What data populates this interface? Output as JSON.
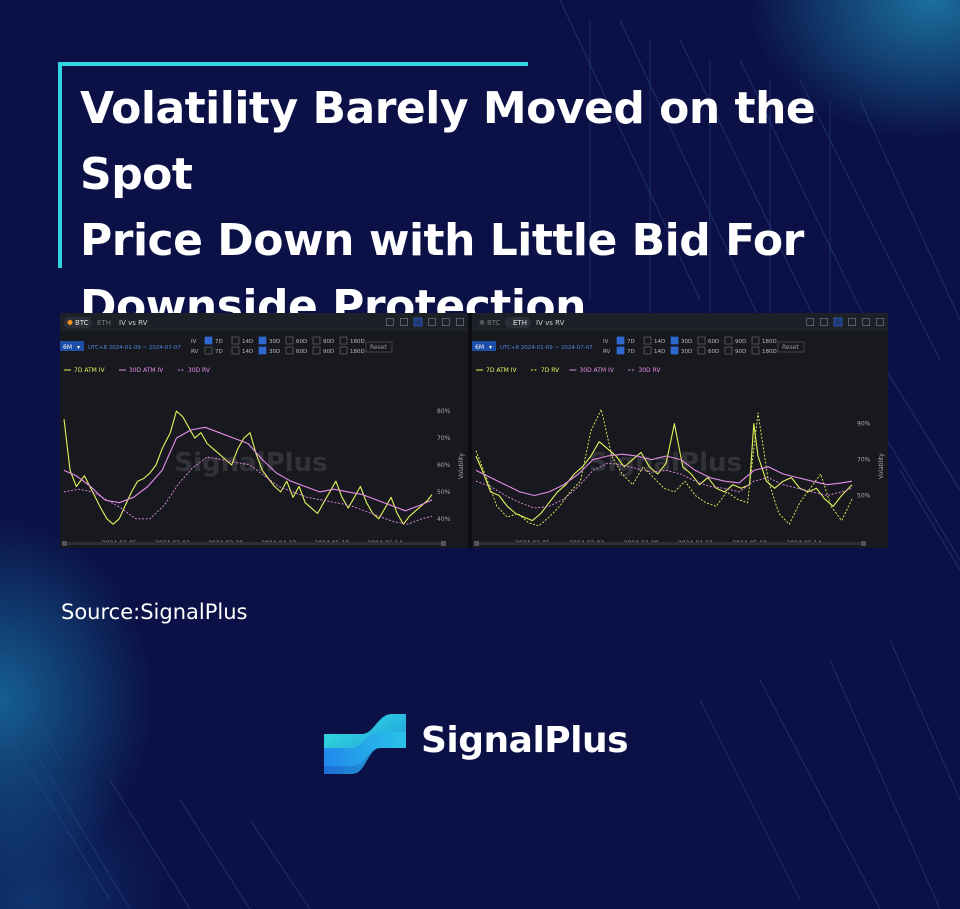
{
  "title_lines": [
    "Volatility Barely Moved on the Spot",
    "Price Down with Little Bid For",
    "Downside Protection"
  ],
  "source": "Source:SignalPlus",
  "brand": "SignalPlus",
  "colors": {
    "background": "#0b1146",
    "accent": "#2fd5e0",
    "iv_line": "#e6f35a",
    "rv_line": "#e58ee8"
  },
  "chart_data": [
    {
      "type": "line",
      "panel": "btc",
      "tabs": [
        "BTC",
        "ETH"
      ],
      "active_tab": "BTC",
      "title": "IV vs RV",
      "period": "6M",
      "date_range": "UTC+8 2024-01-09 ~ 2024-07-07",
      "iv_label": "IV",
      "rv_label": "RV",
      "tenors": [
        "7D",
        "14D",
        "30D",
        "60D",
        "90D",
        "180D"
      ],
      "iv_checked": [
        "7D",
        "30D"
      ],
      "rv_checked": [
        "30D"
      ],
      "reset_label": "Reset",
      "watermark": "SignalPlus",
      "ylabel": "Volatility",
      "y_tick_labels": [
        "80%",
        "70%",
        "60%",
        "50%",
        "40%"
      ],
      "ylim": [
        34,
        86
      ],
      "x_tick_labels": [
        "2024-02-05",
        "2024-03-02",
        "2024-03-28",
        "2024-04-23",
        "2024-05-19",
        "2024-06-14"
      ],
      "x_start": "2024-01-09",
      "x_end": "2024-07-07",
      "series": [
        {
          "name": "7D ATM IV",
          "style": "solid",
          "color": "#e6f35a",
          "dates": [
            "2024-01-09",
            "2024-01-12",
            "2024-01-15",
            "2024-01-19",
            "2024-01-23",
            "2024-01-27",
            "2024-01-30",
            "2024-02-02",
            "2024-02-05",
            "2024-02-08",
            "2024-02-11",
            "2024-02-14",
            "2024-02-17",
            "2024-02-20",
            "2024-02-23",
            "2024-02-26",
            "2024-03-01",
            "2024-03-04",
            "2024-03-07",
            "2024-03-10",
            "2024-03-13",
            "2024-03-16",
            "2024-03-19",
            "2024-03-22",
            "2024-03-25",
            "2024-03-28",
            "2024-03-31",
            "2024-04-03",
            "2024-04-06",
            "2024-04-09",
            "2024-04-12",
            "2024-04-15",
            "2024-04-18",
            "2024-04-21",
            "2024-04-24",
            "2024-04-27",
            "2024-04-30",
            "2024-05-03",
            "2024-05-06",
            "2024-05-09",
            "2024-05-12",
            "2024-05-15",
            "2024-05-18",
            "2024-05-21",
            "2024-05-24",
            "2024-05-27",
            "2024-05-30",
            "2024-06-02",
            "2024-06-05",
            "2024-06-08",
            "2024-06-11",
            "2024-06-14",
            "2024-06-17",
            "2024-06-20",
            "2024-06-23",
            "2024-06-26",
            "2024-06-29",
            "2024-07-02",
            "2024-07-05",
            "2024-07-07"
          ],
          "values": [
            77,
            58,
            52,
            56,
            50,
            44,
            40,
            38,
            40,
            45,
            50,
            54,
            55,
            57,
            60,
            66,
            72,
            80,
            78,
            74,
            70,
            72,
            68,
            66,
            64,
            62,
            60,
            66,
            70,
            72,
            64,
            58,
            55,
            52,
            50,
            54,
            48,
            52,
            46,
            44,
            42,
            46,
            50,
            54,
            48,
            44,
            48,
            52,
            46,
            42,
            40,
            44,
            48,
            42,
            38,
            41,
            43,
            45,
            47,
            49
          ]
        },
        {
          "name": "30D ATM IV",
          "style": "solid",
          "color": "#e58ee8",
          "dates": [
            "2024-01-09",
            "2024-01-15",
            "2024-01-22",
            "2024-01-29",
            "2024-02-05",
            "2024-02-12",
            "2024-02-19",
            "2024-02-26",
            "2024-03-04",
            "2024-03-11",
            "2024-03-18",
            "2024-03-25",
            "2024-04-01",
            "2024-04-08",
            "2024-04-15",
            "2024-04-22",
            "2024-04-29",
            "2024-05-06",
            "2024-05-13",
            "2024-05-20",
            "2024-05-27",
            "2024-06-03",
            "2024-06-10",
            "2024-06-17",
            "2024-06-24",
            "2024-07-01",
            "2024-07-07"
          ],
          "values": [
            58,
            56,
            52,
            47,
            46,
            48,
            52,
            58,
            70,
            73,
            74,
            72,
            70,
            68,
            62,
            57,
            54,
            52,
            50,
            51,
            50,
            49,
            47,
            45,
            43,
            45,
            47
          ]
        },
        {
          "name": "30D RV",
          "style": "dashed",
          "color": "#e58ee8",
          "dates": [
            "2024-01-09",
            "2024-01-16",
            "2024-01-23",
            "2024-01-30",
            "2024-02-06",
            "2024-02-13",
            "2024-02-20",
            "2024-02-27",
            "2024-03-05",
            "2024-03-12",
            "2024-03-19",
            "2024-03-26",
            "2024-04-02",
            "2024-04-09",
            "2024-04-16",
            "2024-04-23",
            "2024-04-30",
            "2024-05-07",
            "2024-05-14",
            "2024-05-21",
            "2024-05-28",
            "2024-06-04",
            "2024-06-11",
            "2024-06-18",
            "2024-06-25",
            "2024-07-02",
            "2024-07-07"
          ],
          "values": [
            50,
            51,
            50,
            47,
            44,
            40,
            40,
            45,
            53,
            59,
            63,
            62,
            61,
            60,
            56,
            52,
            50,
            48,
            47,
            46,
            45,
            43,
            41,
            39,
            38,
            40,
            41
          ]
        }
      ],
      "legend": [
        "7D ATM IV",
        "30D ATM IV",
        "30D RV"
      ]
    },
    {
      "type": "line",
      "panel": "eth",
      "tabs": [
        "BTC",
        "ETH"
      ],
      "active_tab": "ETH",
      "title": "IV vs RV",
      "period": "6M",
      "date_range": "UTC+8 2024-01-09 ~ 2024-07-07",
      "iv_label": "IV",
      "rv_label": "RV",
      "tenors": [
        "7D",
        "14D",
        "30D",
        "60D",
        "90D",
        "180D"
      ],
      "iv_checked": [
        "7D",
        "30D"
      ],
      "rv_checked": [
        "7D",
        "30D"
      ],
      "reset_label": "Reset",
      "watermark": "SignalPlus",
      "ylabel": "Volatility",
      "y_tick_labels": [
        "90%",
        "70%",
        "50%"
      ],
      "ylim": [
        28,
        106
      ],
      "x_tick_labels": [
        "2024-02-05",
        "2024-03-02",
        "2024-03-28",
        "2024-04-23",
        "2024-05-19",
        "2024-06-14"
      ],
      "x_start": "2024-01-09",
      "x_end": "2024-07-07",
      "series": [
        {
          "name": "7D ATM IV",
          "style": "solid",
          "color": "#e6f35a",
          "dates": [
            "2024-01-09",
            "2024-01-12",
            "2024-01-16",
            "2024-01-20",
            "2024-01-24",
            "2024-01-28",
            "2024-02-01",
            "2024-02-05",
            "2024-02-09",
            "2024-02-13",
            "2024-02-17",
            "2024-02-21",
            "2024-02-25",
            "2024-02-29",
            "2024-03-04",
            "2024-03-08",
            "2024-03-12",
            "2024-03-16",
            "2024-03-20",
            "2024-03-24",
            "2024-03-28",
            "2024-04-01",
            "2024-04-05",
            "2024-04-09",
            "2024-04-13",
            "2024-04-17",
            "2024-04-21",
            "2024-04-25",
            "2024-04-29",
            "2024-05-03",
            "2024-05-07",
            "2024-05-11",
            "2024-05-15",
            "2024-05-19",
            "2024-05-21",
            "2024-05-23",
            "2024-05-27",
            "2024-05-31",
            "2024-06-04",
            "2024-06-08",
            "2024-06-12",
            "2024-06-16",
            "2024-06-20",
            "2024-06-24",
            "2024-06-28",
            "2024-07-02",
            "2024-07-07"
          ],
          "values": [
            72,
            64,
            52,
            50,
            44,
            40,
            38,
            36,
            40,
            46,
            52,
            56,
            62,
            66,
            72,
            80,
            76,
            72,
            66,
            70,
            74,
            66,
            62,
            68,
            90,
            66,
            62,
            56,
            60,
            54,
            52,
            56,
            54,
            56,
            90,
            72,
            58,
            54,
            58,
            60,
            54,
            52,
            54,
            48,
            44,
            50,
            56
          ]
        },
        {
          "name": "7D RV",
          "style": "dashed",
          "color": "#e6f35a",
          "dates": [
            "2024-01-09",
            "2024-01-14",
            "2024-01-19",
            "2024-01-24",
            "2024-01-29",
            "2024-02-03",
            "2024-02-08",
            "2024-02-13",
            "2024-02-18",
            "2024-02-23",
            "2024-02-28",
            "2024-03-04",
            "2024-03-09",
            "2024-03-14",
            "2024-03-19",
            "2024-03-24",
            "2024-03-29",
            "2024-04-03",
            "2024-04-08",
            "2024-04-13",
            "2024-04-18",
            "2024-04-23",
            "2024-04-28",
            "2024-05-03",
            "2024-05-08",
            "2024-05-13",
            "2024-05-18",
            "2024-05-23",
            "2024-05-28",
            "2024-06-02",
            "2024-06-07",
            "2024-06-12",
            "2024-06-17",
            "2024-06-22",
            "2024-06-27",
            "2024-07-02",
            "2024-07-07"
          ],
          "values": [
            75,
            60,
            44,
            38,
            40,
            35,
            33,
            38,
            44,
            52,
            58,
            86,
            98,
            72,
            62,
            56,
            66,
            60,
            54,
            52,
            58,
            50,
            46,
            44,
            52,
            48,
            46,
            96,
            58,
            40,
            34,
            46,
            54,
            62,
            44,
            36,
            48
          ]
        },
        {
          "name": "30D ATM IV",
          "style": "solid",
          "color": "#e58ee8",
          "dates": [
            "2024-01-09",
            "2024-01-16",
            "2024-01-23",
            "2024-01-30",
            "2024-02-06",
            "2024-02-13",
            "2024-02-20",
            "2024-02-27",
            "2024-03-05",
            "2024-03-12",
            "2024-03-19",
            "2024-03-26",
            "2024-04-02",
            "2024-04-09",
            "2024-04-16",
            "2024-04-23",
            "2024-04-30",
            "2024-05-07",
            "2024-05-14",
            "2024-05-21",
            "2024-05-28",
            "2024-06-04",
            "2024-06-11",
            "2024-06-18",
            "2024-06-25",
            "2024-07-02",
            "2024-07-07"
          ],
          "values": [
            64,
            60,
            56,
            52,
            50,
            52,
            56,
            62,
            70,
            72,
            73,
            72,
            70,
            72,
            70,
            64,
            60,
            58,
            57,
            64,
            66,
            62,
            60,
            58,
            56,
            57,
            58
          ]
        },
        {
          "name": "30D RV",
          "style": "dashed",
          "color": "#e58ee8",
          "dates": [
            "2024-01-09",
            "2024-01-16",
            "2024-01-23",
            "2024-01-30",
            "2024-02-06",
            "2024-02-13",
            "2024-02-20",
            "2024-02-27",
            "2024-03-05",
            "2024-03-12",
            "2024-03-19",
            "2024-03-26",
            "2024-04-02",
            "2024-04-09",
            "2024-04-16",
            "2024-04-23",
            "2024-04-30",
            "2024-05-07",
            "2024-05-14",
            "2024-05-21",
            "2024-05-28",
            "2024-06-04",
            "2024-06-11",
            "2024-06-18",
            "2024-06-25",
            "2024-07-02",
            "2024-07-07"
          ],
          "values": [
            58,
            55,
            50,
            46,
            43,
            44,
            48,
            55,
            64,
            68,
            67,
            65,
            63,
            64,
            62,
            58,
            55,
            54,
            52,
            58,
            60,
            56,
            54,
            52,
            50,
            52,
            54
          ]
        }
      ],
      "legend": [
        "7D ATM IV",
        "7D RV",
        "30D ATM IV",
        "30D RV"
      ]
    }
  ]
}
